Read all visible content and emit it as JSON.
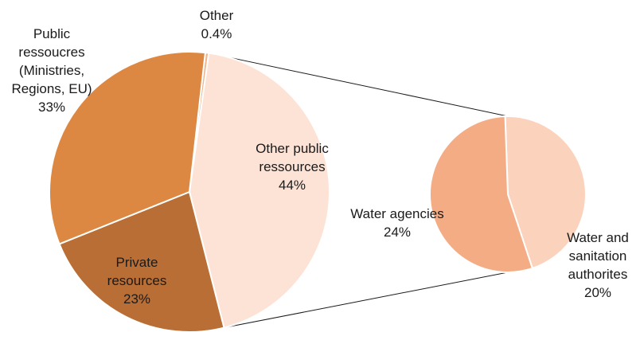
{
  "chart_data": {
    "type": "pie",
    "subtype": "pie-of-pie",
    "title": "",
    "main_pie": {
      "slices": [
        {
          "label": "Other",
          "value": 0.4,
          "value_label": "0.4%",
          "color": "#f2b48a",
          "label_lines": [
            "Other",
            "0.4%"
          ]
        },
        {
          "label": "Other public ressources",
          "value": 44,
          "value_label": "44%",
          "color": "#fde3d6",
          "label_lines": [
            "Other public",
            "ressources",
            "44%"
          ]
        },
        {
          "label": "Private resources",
          "value": 23,
          "value_label": "23%",
          "color": "#b86e35",
          "label_lines": [
            "Private",
            "resources",
            "23%"
          ]
        },
        {
          "label": "Public ressoucres (Ministries, Regions, EU)",
          "value": 33,
          "value_label": "33%",
          "color": "#dd8842",
          "label_lines": [
            "Public",
            "ressoucres",
            "(Ministries,",
            "Regions, EU)",
            "33%"
          ]
        }
      ]
    },
    "secondary_pie": {
      "breakdown_of": "Other public ressources",
      "slices": [
        {
          "label": "Water and sanitation authorites",
          "value": 20,
          "value_label": "20%",
          "color": "#fbd3bd",
          "label_lines": [
            "Water and",
            "sanitation",
            "authorites",
            "20%"
          ]
        },
        {
          "label": "Water agencies",
          "value": 24,
          "value_label": "24%",
          "color": "#f4ac85",
          "label_lines": [
            "Water agencies",
            "24%"
          ]
        }
      ]
    }
  }
}
